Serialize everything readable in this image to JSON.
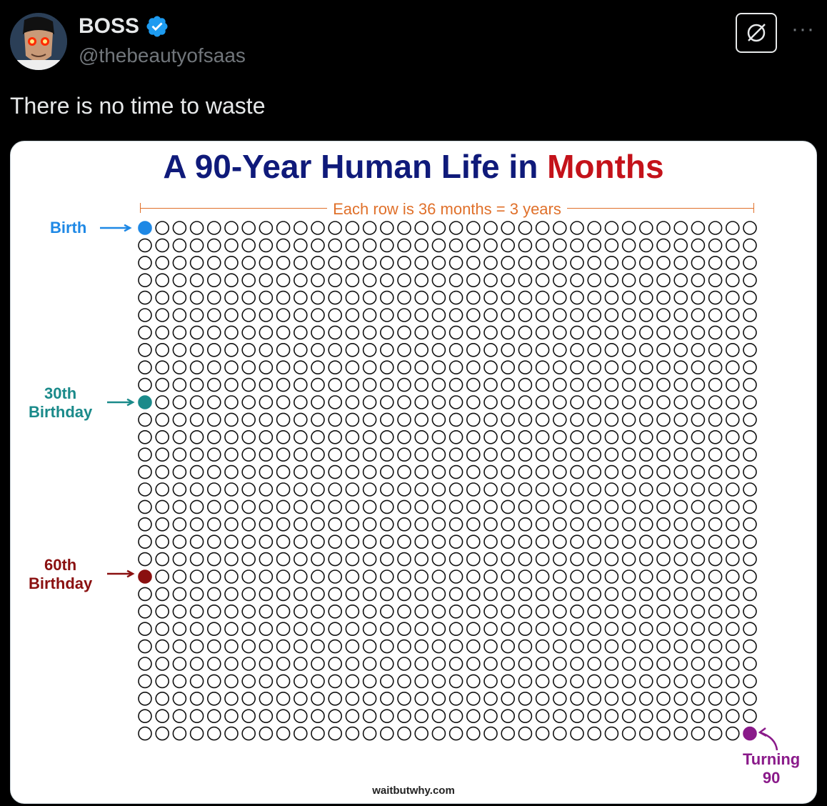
{
  "tweet": {
    "author_name": "BOSS",
    "handle": "@thebeautyofsaas",
    "text": "There is no time to waste",
    "more_label": "···"
  },
  "colors": {
    "verified": "#1d9bf0",
    "title_main": "#0f1a7a",
    "title_accent": "#c4121a",
    "birth": "#1e88e5",
    "thirty": "#1a8a8a",
    "sixty": "#8a1010",
    "ninety": "#8a1a8a",
    "note": "#e0702a"
  },
  "chart_data": {
    "type": "table",
    "title_part1": "A 90-Year Human Life in ",
    "title_part2": "Months",
    "row_note": "Each row is 36 months = 3 years",
    "rows": 30,
    "columns": 36,
    "total_months": 1080,
    "markers": [
      {
        "label_line1": "Birth",
        "label_line2": "",
        "row": 0,
        "col": 0,
        "color": "#1e88e5"
      },
      {
        "label_line1": "30th",
        "label_line2": "Birthday",
        "row": 10,
        "col": 0,
        "color": "#1a8a8a"
      },
      {
        "label_line1": "60th",
        "label_line2": "Birthday",
        "row": 20,
        "col": 0,
        "color": "#8a1010"
      },
      {
        "label_line1": "Turning",
        "label_line2": "90",
        "row": 29,
        "col": 35,
        "color": "#8a1a8a"
      }
    ],
    "source": "waitbutwhy.com"
  }
}
